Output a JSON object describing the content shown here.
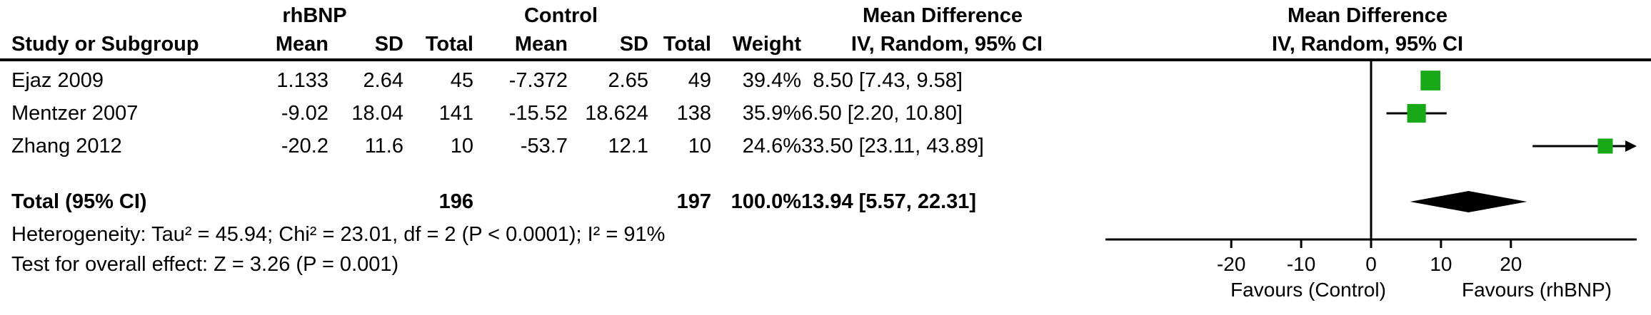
{
  "table": {
    "group_headers": {
      "rhbnp": "rhBNP",
      "control": "Control",
      "md_text": "Mean Difference",
      "md_plot": "Mean Difference"
    },
    "col_headers": {
      "study": "Study or Subgroup",
      "mean1": "Mean",
      "sd1": "SD",
      "total1": "Total",
      "mean2": "Mean",
      "sd2": "SD",
      "total2": "Total",
      "weight": "Weight",
      "ci": "IV, Random, 95% CI",
      "ci_plot": "IV, Random, 95% CI"
    },
    "rows": [
      {
        "study": "Ejaz 2009",
        "mean1": "1.133",
        "sd1": "2.64",
        "total1": "45",
        "mean2": "-7.372",
        "sd2": "2.65",
        "total2": "49",
        "weight": "39.4%",
        "ci": "8.50 [7.43, 9.58]"
      },
      {
        "study": "Mentzer 2007",
        "mean1": "-9.02",
        "sd1": "18.04",
        "total1": "141",
        "mean2": "-15.52",
        "sd2": "18.624",
        "total2": "138",
        "weight": "35.9%",
        "ci": "6.50 [2.20, 10.80]"
      },
      {
        "study": "Zhang 2012",
        "mean1": "-20.2",
        "sd1": "11.6",
        "total1": "10",
        "mean2": "-53.7",
        "sd2": "12.1",
        "total2": "10",
        "weight": "24.6%",
        "ci": "33.50 [23.11, 43.89]"
      }
    ],
    "total": {
      "label": "Total (95% CI)",
      "total1": "196",
      "total2": "197",
      "weight": "100.0%",
      "ci": "13.94 [5.57, 22.31]"
    },
    "heterogeneity": "Heterogeneity: Tau² = 45.94; Chi² = 23.01, df = 2 (P < 0.0001); I² = 91%",
    "overall_effect": "Test for overall effect: Z = 3.26 (P = 0.001)"
  },
  "chart_data": {
    "type": "scatter",
    "subtype": "forest-plot",
    "title": "Mean Difference",
    "effect_measure": "IV, Random, 95% CI",
    "studies": [
      {
        "name": "Ejaz 2009",
        "md": 8.5,
        "ci_low": 7.43,
        "ci_high": 9.58,
        "weight_pct": 39.4
      },
      {
        "name": "Mentzer 2007",
        "md": 6.5,
        "ci_low": 2.2,
        "ci_high": 10.8,
        "weight_pct": 35.9
      },
      {
        "name": "Zhang 2012",
        "md": 33.5,
        "ci_low": 23.11,
        "ci_high": 43.89,
        "weight_pct": 24.6
      }
    ],
    "total": {
      "name": "Total (95% CI)",
      "md": 13.94,
      "ci_low": 5.57,
      "ci_high": 22.31,
      "weight_pct": 100.0
    },
    "axis": {
      "min": -38,
      "max": 38,
      "ticks": [
        -20,
        -10,
        0,
        10,
        20
      ]
    },
    "xlabel_left": "Favours (Control)",
    "xlabel_right": "Favours (rhBNP)",
    "square_color": "#18A818",
    "line_color": "#000000",
    "diamond_color": "#000000"
  }
}
